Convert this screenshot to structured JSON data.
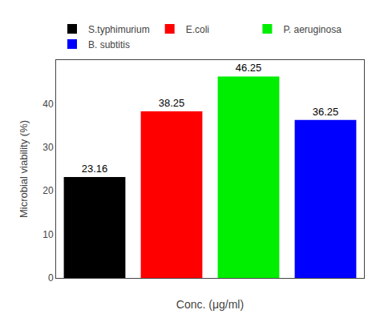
{
  "chart_data": {
    "type": "bar",
    "categories": [
      "S.typhimurium",
      "E.coli",
      "P. aeruginosa",
      "B. subtitis"
    ],
    "values": [
      23.16,
      38.25,
      46.25,
      36.25
    ],
    "colors": [
      "#000000",
      "#ff0000",
      "#00ee00",
      "#0000ff"
    ],
    "xlabel": "Conc. (μg/ml)",
    "ylabel": "Microbial viability (%)",
    "ylim": [
      0,
      50
    ],
    "yticks": [
      0,
      10,
      20,
      30,
      40
    ],
    "legend": "upper left",
    "data_labels": true,
    "tick_labels": "y",
    "grid": false
  }
}
